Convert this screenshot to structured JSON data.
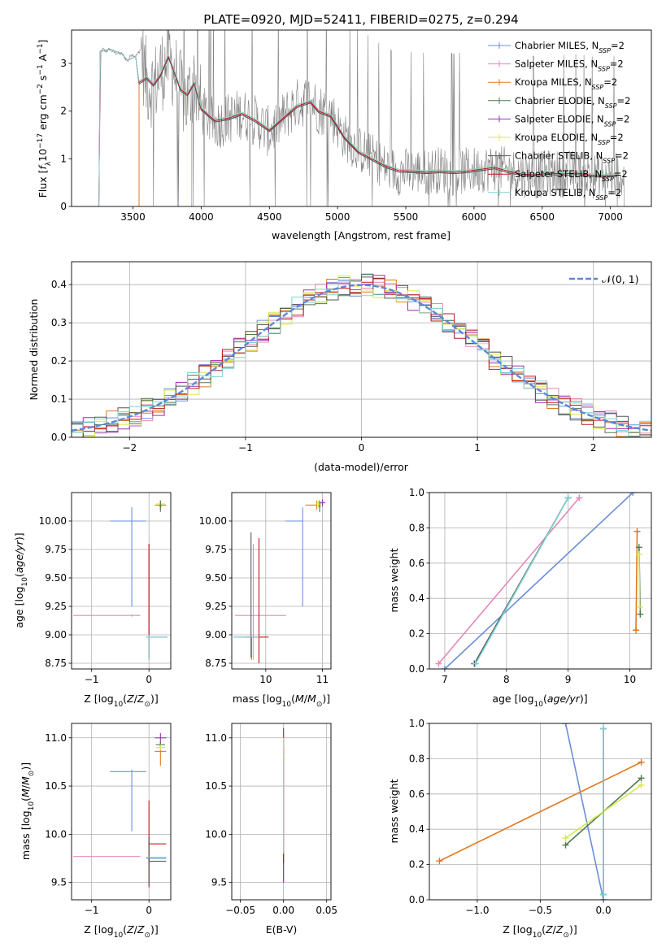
{
  "figure_title": "PLATE=0920, MJD=52411, FIBERID=0275, z=0.294",
  "legend_entries": [
    {
      "main": "Chabrier MILES, N",
      "sub": "SSP",
      "tail": "=2",
      "color": "#6a8fd8"
    },
    {
      "main": "Salpeter MILES, N",
      "sub": "SSP",
      "tail": "=2",
      "color": "#e787b8"
    },
    {
      "main": "Kroupa MILES, N",
      "sub": "SSP",
      "tail": "=2",
      "color": "#e07a20"
    },
    {
      "main": "Chabrier ELODIE, N",
      "sub": "SSP",
      "tail": "=2",
      "color": "#4f7a4f"
    },
    {
      "main": "Salpeter ELODIE, N",
      "sub": "SSP",
      "tail": "=2",
      "color": "#9b2fae"
    },
    {
      "main": "Kroupa ELODIE, N",
      "sub": "SSP",
      "tail": "=2",
      "color": "#d8e84c"
    },
    {
      "main": "Chabrier STELIB, N",
      "sub": "SSP",
      "tail": "=2",
      "color": "#555555"
    },
    {
      "main": "Salpeter STELIB, N",
      "sub": "SSP",
      "tail": "=2",
      "color": "#c0181c"
    },
    {
      "main": "Kroupa STELIB, N",
      "sub": "SSP",
      "tail": "=2",
      "color": "#7fd3d3"
    }
  ],
  "chart_data": [
    {
      "id": "spectrum",
      "type": "line",
      "title": "PLATE=0920, MJD=52411, FIBERID=0275, z=0.294",
      "xlabel": "wavelength [Angstrom, rest frame]",
      "ylabel": "Flux [f_λ 10^-17 erg cm^-2 s^-1 A^-1]",
      "xlim": [
        3050,
        7300
      ],
      "ylim": [
        0,
        3.7
      ],
      "xticks": [
        3500,
        4000,
        4500,
        5000,
        5500,
        6000,
        6500,
        7000
      ],
      "yticks": [
        0,
        1,
        2,
        3
      ],
      "grid": false,
      "legend_position": "top-right",
      "data_series": {
        "name": "data",
        "color": "#808080",
        "x": [
          3250,
          3265,
          3280,
          3300,
          3330,
          3370,
          3420,
          3460,
          3490,
          3520,
          3560,
          3600,
          3650,
          3700,
          3760,
          3800,
          3850,
          3900,
          3950,
          4000,
          4100,
          4200,
          4300,
          4400,
          4500,
          4600,
          4700,
          4800,
          4860,
          4950,
          5050,
          5150,
          5250,
          5350,
          5450,
          5550,
          5650,
          5750,
          5850,
          5950,
          6050,
          6150,
          6250,
          6350,
          6450,
          6550,
          6650,
          6750,
          6850,
          6950,
          7050,
          7100
        ],
        "y": [
          0,
          3.25,
          3.3,
          3.25,
          3.3,
          3.22,
          3.2,
          3.05,
          3.2,
          3.15,
          3.3,
          2.6,
          2.5,
          2.8,
          3.1,
          2.9,
          2.4,
          2.2,
          2.7,
          2.05,
          1.7,
          1.85,
          1.95,
          1.8,
          1.55,
          1.85,
          2.15,
          2.25,
          2.05,
          1.95,
          1.45,
          1.2,
          1.05,
          0.82,
          0.72,
          0.75,
          0.72,
          0.78,
          0.7,
          0.75,
          0.78,
          0.82,
          0.74,
          0.68,
          0.65,
          0.7,
          0.68,
          0.7,
          0.65,
          0.62,
          0.66,
          0.6
        ]
      },
      "model_series": [
        {
          "name": "Chabrier MILES, N_SSP=2",
          "start": 3545
        },
        {
          "name": "Salpeter MILES, N_SSP=2",
          "start": 3545
        },
        {
          "name": "Kroupa MILES, N_SSP=2",
          "start": 3545
        },
        {
          "name": "Chabrier ELODIE, N_SSP=2",
          "start": 3930
        },
        {
          "name": "Salpeter ELODIE, N_SSP=2",
          "start": 3930
        },
        {
          "name": "Kroupa ELODIE, N_SSP=2",
          "start": 3930
        },
        {
          "name": "Chabrier STELIB, N_SSP=2",
          "start": 3250
        },
        {
          "name": "Salpeter STELIB, N_SSP=2",
          "start": 3250
        },
        {
          "name": "Kroupa STELIB, N_SSP=2",
          "start": 3250
        }
      ],
      "model_shape": {
        "x": [
          3545,
          3600,
          3650,
          3700,
          3760,
          3800,
          3850,
          3900,
          3950,
          4000,
          4100,
          4200,
          4300,
          4400,
          4500,
          4600,
          4700,
          4800,
          4860,
          4950,
          5050,
          5150,
          5250,
          5350,
          5450,
          5550,
          5650,
          5750,
          5850,
          5950,
          6050,
          6150,
          6250,
          6350,
          6450,
          6550,
          6650,
          6750,
          6850,
          6950,
          7050
        ],
        "y": [
          2.6,
          2.7,
          2.55,
          2.75,
          3.15,
          2.85,
          2.45,
          2.35,
          2.6,
          2.05,
          1.8,
          1.85,
          1.95,
          1.8,
          1.6,
          1.85,
          2.1,
          2.2,
          2.0,
          1.9,
          1.45,
          1.15,
          1.0,
          0.85,
          0.75,
          0.74,
          0.72,
          0.74,
          0.72,
          0.74,
          0.78,
          0.82,
          0.74,
          0.68,
          0.66,
          0.7,
          0.68,
          0.7,
          0.66,
          0.64,
          0.66
        ]
      }
    },
    {
      "id": "residuals",
      "type": "line",
      "xlabel": "(data-model)/error",
      "ylabel": "Normed distribution",
      "xlim": [
        -2.5,
        2.5
      ],
      "ylim": [
        0,
        0.46
      ],
      "xticks": [
        -2,
        -1,
        0,
        1,
        2
      ],
      "yticks": [
        0.0,
        0.1,
        0.2,
        0.3,
        0.4
      ],
      "grid": true,
      "legend": [
        "𝒩(0, 1)"
      ],
      "legend_position": "top-right",
      "series": [
        {
          "name": "𝒩(0, 1)",
          "function": "standard normal pdf",
          "style": "dashed",
          "color": "#5b88d8"
        }
      ],
      "histograms": "one step histogram per model (9), bin width 0.1, following N(0,1)"
    },
    {
      "id": "age-vs-Z",
      "type": "scatter",
      "xlabel": "Z [log10(Z/Z⊙)]",
      "ylabel": "age  [log10(age/yr)]",
      "xlim": [
        -1.35,
        0.38
      ],
      "ylim": [
        8.7,
        10.25
      ],
      "xticks": [
        -1,
        0
      ],
      "yticks": [
        8.75,
        9.0,
        9.25,
        9.5,
        9.75,
        10.0
      ],
      "grid": true,
      "errorbars": [
        {
          "series": "Chabrier MILES",
          "x": -0.3,
          "y": 10.0,
          "xerr": [
            0.38,
            0.25
          ],
          "yerr": [
            0.75,
            0.12
          ]
        },
        {
          "series": "Chabrier MILES",
          "x": 0.0,
          "y": 8.98,
          "xerr": [
            0.05,
            0.32
          ],
          "yerr": [
            0.2,
            0.02
          ]
        },
        {
          "series": "Salpeter MILES",
          "x": -0.3,
          "y": 9.17,
          "xerr": [
            1.02,
            0.15
          ],
          "yerr": [
            0.01,
            0.01
          ]
        },
        {
          "series": "Salpeter MILES",
          "x": 0.0,
          "y": 9.5,
          "xerr": [
            0.01,
            0.01
          ],
          "yerr": [
            0.7,
            0.3
          ]
        },
        {
          "series": "Kroupa MILES",
          "x": 0.2,
          "y": 10.14,
          "xerr": [
            0.1,
            0.1
          ],
          "yerr": [
            0.04,
            0.04
          ]
        },
        {
          "series": "Kroupa ELODIE",
          "x": 0.2,
          "y": 10.15,
          "xerr": [
            0.08,
            0.08
          ],
          "yerr": [
            0.03,
            0.03
          ]
        },
        {
          "series": "Chabrier ELODIE",
          "x": 0.2,
          "y": 10.13,
          "xerr": [
            0.02,
            0.02
          ],
          "yerr": [
            0.05,
            0.05
          ]
        },
        {
          "series": "Salpeter STELIB",
          "x": 0.0,
          "y": 9.5,
          "xerr": [
            0.01,
            0.01
          ],
          "yerr": [
            0.7,
            0.3
          ]
        },
        {
          "series": "Kroupa STELIB",
          "x": 0.0,
          "y": 8.98,
          "xerr": [
            0.05,
            0.3
          ],
          "yerr": [
            0.2,
            0.02
          ]
        }
      ]
    },
    {
      "id": "age-vs-mass",
      "type": "scatter",
      "xlabel": "mass [log10(M/M⊙)]",
      "ylabel": "",
      "xlim": [
        9.4,
        11.15
      ],
      "ylim": [
        8.7,
        10.25
      ],
      "xticks": [
        10,
        11
      ],
      "yticks": [
        8.75,
        9.0,
        9.25,
        9.5,
        9.75,
        10.0
      ],
      "grid": true,
      "errorbars": [
        {
          "series": "Chabrier MILES",
          "x": 10.65,
          "y": 10.0,
          "xerr": [
            0.3,
            0.0
          ],
          "yerr": [
            0.75,
            0.12
          ]
        },
        {
          "series": "Chabrier MILES",
          "x": 9.75,
          "y": 8.98,
          "xerr": [
            0.32,
            0.0
          ],
          "yerr": [
            0.2,
            0.0
          ]
        },
        {
          "series": "Salpeter MILES",
          "x": 9.78,
          "y": 9.17,
          "xerr": [
            0.32,
            0.58
          ],
          "yerr": [
            0.0,
            0.0
          ]
        },
        {
          "series": "Salpeter MILES",
          "x": 9.78,
          "y": 9.5,
          "xerr": [
            0.0,
            0.0
          ],
          "yerr": [
            0.7,
            0.3
          ]
        },
        {
          "series": "Chabrier STELIB",
          "x": 9.74,
          "y": 9.35,
          "xerr": [
            0.0,
            0.0
          ],
          "yerr": [
            0.55,
            0.55
          ]
        },
        {
          "series": "Salpeter STELIB",
          "x": 9.88,
          "y": 9.3,
          "xerr": [
            0.0,
            0.0
          ],
          "yerr": [
            0.55,
            0.55
          ]
        },
        {
          "series": "Salpeter STELIB",
          "x": 9.85,
          "y": 8.98,
          "xerr": [
            0.2,
            0.2
          ],
          "yerr": [
            0.0,
            0.0
          ]
        },
        {
          "series": "Kroupa STELIB",
          "x": 9.78,
          "y": 8.98,
          "xerr": [
            0.35,
            0.1
          ],
          "yerr": [
            0.2,
            0.0
          ]
        },
        {
          "series": "Kroupa MILES",
          "x": 10.9,
          "y": 10.14,
          "xerr": [
            0.2,
            0.0
          ],
          "yerr": [
            0.04,
            0.04
          ]
        },
        {
          "series": "Salpeter ELODIE",
          "x": 11.0,
          "y": 10.16,
          "xerr": [
            0.05,
            0.05
          ],
          "yerr": [
            0.03,
            0.03
          ]
        },
        {
          "series": "Kroupa ELODIE",
          "x": 10.93,
          "y": 10.15,
          "xerr": [
            0.05,
            0.05
          ],
          "yerr": [
            0.03,
            0.03
          ]
        },
        {
          "series": "Chabrier ELODIE",
          "x": 10.95,
          "y": 10.13,
          "xerr": [
            0.02,
            0.02
          ],
          "yerr": [
            0.05,
            0.05
          ]
        }
      ]
    },
    {
      "id": "weight-vs-age",
      "type": "line",
      "xlabel": "age  [log10(age/yr)]",
      "ylabel": "mass weight",
      "xlim": [
        6.75,
        10.35
      ],
      "ylim": [
        0,
        1.0
      ],
      "xticks": [
        7,
        8,
        9,
        10
      ],
      "yticks": [
        0.0,
        0.2,
        0.4,
        0.6,
        0.8,
        1.0
      ],
      "grid": true,
      "series": [
        {
          "name": "Chabrier MILES",
          "x": [
            7.0,
            10.05
          ],
          "y": [
            0.0,
            1.0
          ]
        },
        {
          "name": "Salpeter MILES",
          "x": [
            6.9,
            9.18
          ],
          "y": [
            0.03,
            0.97
          ]
        },
        {
          "name": "Kroupa MILES",
          "x": [
            10.1,
            10.12
          ],
          "y": [
            0.22,
            0.78
          ]
        },
        {
          "name": "Chabrier ELODIE",
          "x": [
            10.17,
            10.15
          ],
          "y": [
            0.31,
            0.69
          ]
        },
        {
          "name": "Kroupa ELODIE",
          "x": [
            10.16,
            10.15
          ],
          "y": [
            0.35,
            0.65
          ]
        },
        {
          "name": "Chabrier STELIB",
          "x": [
            7.48,
            9.0
          ],
          "y": [
            0.03,
            0.97
          ]
        },
        {
          "name": "Kroupa STELIB",
          "x": [
            7.5,
            9.0
          ],
          "y": [
            0.03,
            0.97
          ]
        }
      ]
    },
    {
      "id": "mass-vs-Z",
      "type": "scatter",
      "xlabel": "Z [log10(Z/Z⊙)]",
      "ylabel": "mass [log10(M/M⊙)]",
      "xlim": [
        -1.35,
        0.38
      ],
      "ylim": [
        9.32,
        11.15
      ],
      "xticks": [
        -1,
        0
      ],
      "yticks": [
        9.5,
        10.0,
        10.5,
        11.0
      ],
      "grid": true,
      "errorbars": [
        {
          "series": "Chabrier MILES",
          "x": -0.3,
          "y": 10.65,
          "xerr": [
            0.38,
            0.25
          ],
          "yerr": [
            0.62,
            0.02
          ]
        },
        {
          "series": "Chabrier MILES",
          "x": 0.0,
          "y": 9.75,
          "xerr": [
            0.05,
            0.3
          ],
          "yerr": [
            0.02,
            0.02
          ]
        },
        {
          "series": "Salpeter MILES",
          "x": -0.3,
          "y": 9.77,
          "xerr": [
            1.02,
            0.15
          ],
          "yerr": [
            0.0,
            0.0
          ]
        },
        {
          "series": "Salpeter STELIB",
          "x": 0.0,
          "y": 9.9,
          "xerr": [
            0.0,
            0.3
          ],
          "yerr": [
            0.45,
            0.45
          ]
        },
        {
          "series": "Chabrier STELIB",
          "x": 0.0,
          "y": 9.72,
          "xerr": [
            0.0,
            0.3
          ],
          "yerr": [
            0.25,
            0.25
          ]
        },
        {
          "series": "Kroupa STELIB",
          "x": 0.0,
          "y": 9.76,
          "xerr": [
            0.05,
            0.3
          ],
          "yerr": [
            0.0,
            0.0
          ]
        },
        {
          "series": "Kroupa MILES",
          "x": 0.2,
          "y": 10.86,
          "xerr": [
            0.1,
            0.1
          ],
          "yerr": [
            0.15,
            0.1
          ]
        },
        {
          "series": "Salpeter ELODIE",
          "x": 0.2,
          "y": 11.0,
          "xerr": [
            0.1,
            0.1
          ],
          "yerr": [
            0.05,
            0.05
          ]
        },
        {
          "series": "Chabrier ELODIE",
          "x": 0.2,
          "y": 10.93,
          "xerr": [
            0.08,
            0.08
          ],
          "yerr": [
            0.03,
            0.03
          ]
        },
        {
          "series": "Kroupa ELODIE",
          "x": 0.2,
          "y": 10.9,
          "xerr": [
            0.08,
            0.08
          ],
          "yerr": [
            0.03,
            0.03
          ]
        }
      ]
    },
    {
      "id": "mass-vs-ebv",
      "type": "scatter",
      "xlabel": "E(B-V)",
      "ylabel": "",
      "xlim": [
        -0.06,
        0.055
      ],
      "ylim": [
        9.32,
        11.15
      ],
      "xticks": [
        -0.05,
        0.0,
        0.05
      ],
      "yticks": [
        9.5,
        10.0,
        10.5,
        11.0
      ],
      "grid": true,
      "errorbars": [
        {
          "series": "Chabrier MILES",
          "x": 0.0,
          "y": 10.3,
          "xerr": [
            0.0,
            0.0
          ],
          "yerr": [
            0.8,
            0.8
          ]
        },
        {
          "series": "Salpeter ELODIE",
          "x": 0.0,
          "y": 10.3,
          "xerr": [
            0.0,
            0.0
          ],
          "yerr": [
            0.8,
            0.8
          ]
        },
        {
          "series": "Salpeter STELIB",
          "x": 0.0,
          "y": 10.3,
          "xerr": [
            0.0,
            0.0
          ],
          "yerr": [
            0.6,
            0.6
          ]
        },
        {
          "series": "Kroupa ELODIE",
          "x": 0.0,
          "y": 10.4,
          "xerr": [
            0.0,
            0.0
          ],
          "yerr": [
            0.6,
            0.6
          ]
        },
        {
          "series": "Kroupa STELIB",
          "x": 0.0,
          "y": 10.3,
          "xerr": [
            0.0,
            0.0
          ],
          "yerr": [
            0.5,
            0.5
          ]
        }
      ]
    },
    {
      "id": "weight-vs-Z",
      "type": "line",
      "xlabel": "Z [log10(Z/Z⊙)]",
      "ylabel": "mass weight",
      "xlim": [
        -1.38,
        0.38
      ],
      "ylim": [
        0,
        1.0
      ],
      "xticks": [
        -1.0,
        -0.5,
        0.0
      ],
      "yticks": [
        0.0,
        0.2,
        0.4,
        0.6,
        0.8,
        1.0
      ],
      "grid": true,
      "series": [
        {
          "name": "Chabrier MILES",
          "x": [
            -0.3,
            0.0
          ],
          "y": [
            1.0,
            0.0
          ]
        },
        {
          "name": "Kroupa MILES",
          "x": [
            -1.3,
            0.3
          ],
          "y": [
            0.22,
            0.78
          ]
        },
        {
          "name": "Chabrier ELODIE",
          "x": [
            -0.3,
            0.3
          ],
          "y": [
            0.31,
            0.69
          ]
        },
        {
          "name": "Kroupa ELODIE",
          "x": [
            -0.3,
            0.3
          ],
          "y": [
            0.35,
            0.65
          ]
        },
        {
          "name": "Chabrier STELIB",
          "x": [
            0.0,
            0.0
          ],
          "y": [
            0.03,
            0.97
          ]
        },
        {
          "name": "Kroupa STELIB",
          "x": [
            0.0,
            0.0
          ],
          "y": [
            0.03,
            0.97
          ]
        }
      ]
    }
  ]
}
